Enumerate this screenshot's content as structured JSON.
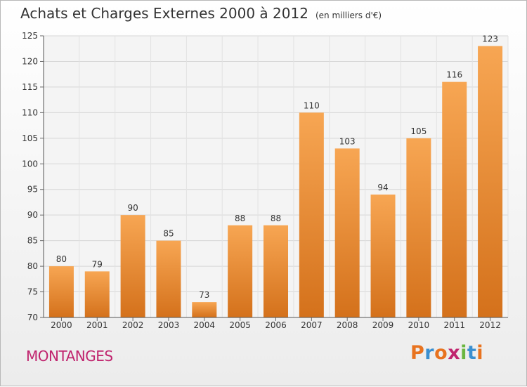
{
  "header": {
    "title": "Achats et Charges Externes 2000 à 2012",
    "unit": "(en milliers d'€)"
  },
  "footer": {
    "commune": "MONTANGES",
    "logo_text": "Proxiti",
    "logo_colors": [
      "#e8731f",
      "#3a8fd0",
      "#e8731f",
      "#c0246e",
      "#6ab63f",
      "#3a8fd0",
      "#e8731f"
    ]
  },
  "colors": {
    "bar_top": "#f7a653",
    "bar_bottom": "#d4711b",
    "accent": "#c0246e"
  },
  "chart_data": {
    "type": "bar",
    "title": "Achats et Charges Externes 2000 à 2012",
    "subtitle": "(en milliers d'€)",
    "xlabel": "",
    "ylabel": "",
    "categories": [
      "2000",
      "2001",
      "2002",
      "2003",
      "2004",
      "2005",
      "2006",
      "2007",
      "2008",
      "2009",
      "2010",
      "2011",
      "2012"
    ],
    "values": [
      80,
      79,
      90,
      85,
      73,
      88,
      88,
      110,
      103,
      94,
      105,
      116,
      123
    ],
    "ylim": [
      70,
      125
    ],
    "yticks": [
      70,
      75,
      80,
      85,
      90,
      95,
      100,
      105,
      110,
      115,
      120,
      125
    ],
    "grid": true,
    "data_labels": true
  }
}
